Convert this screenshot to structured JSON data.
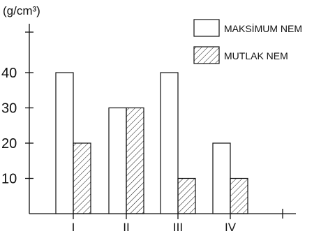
{
  "chart_data": {
    "type": "bar",
    "ylabel": "(g/cm³)",
    "xlabel": "",
    "categories": [
      "I",
      "II",
      "III",
      "IV"
    ],
    "series": [
      {
        "name": "MAKSİMUM NEM",
        "values": [
          40,
          30,
          40,
          20
        ],
        "fill": "plain"
      },
      {
        "name": "MUTLAK NEM",
        "values": [
          20,
          30,
          10,
          10
        ],
        "fill": "hatched"
      }
    ],
    "yticks": [
      10,
      20,
      30,
      40
    ],
    "ylim": [
      0,
      50
    ],
    "grid": false,
    "legend_position": "top-right",
    "colors": {
      "ink": "#111111",
      "background": "#ffffff"
    }
  }
}
